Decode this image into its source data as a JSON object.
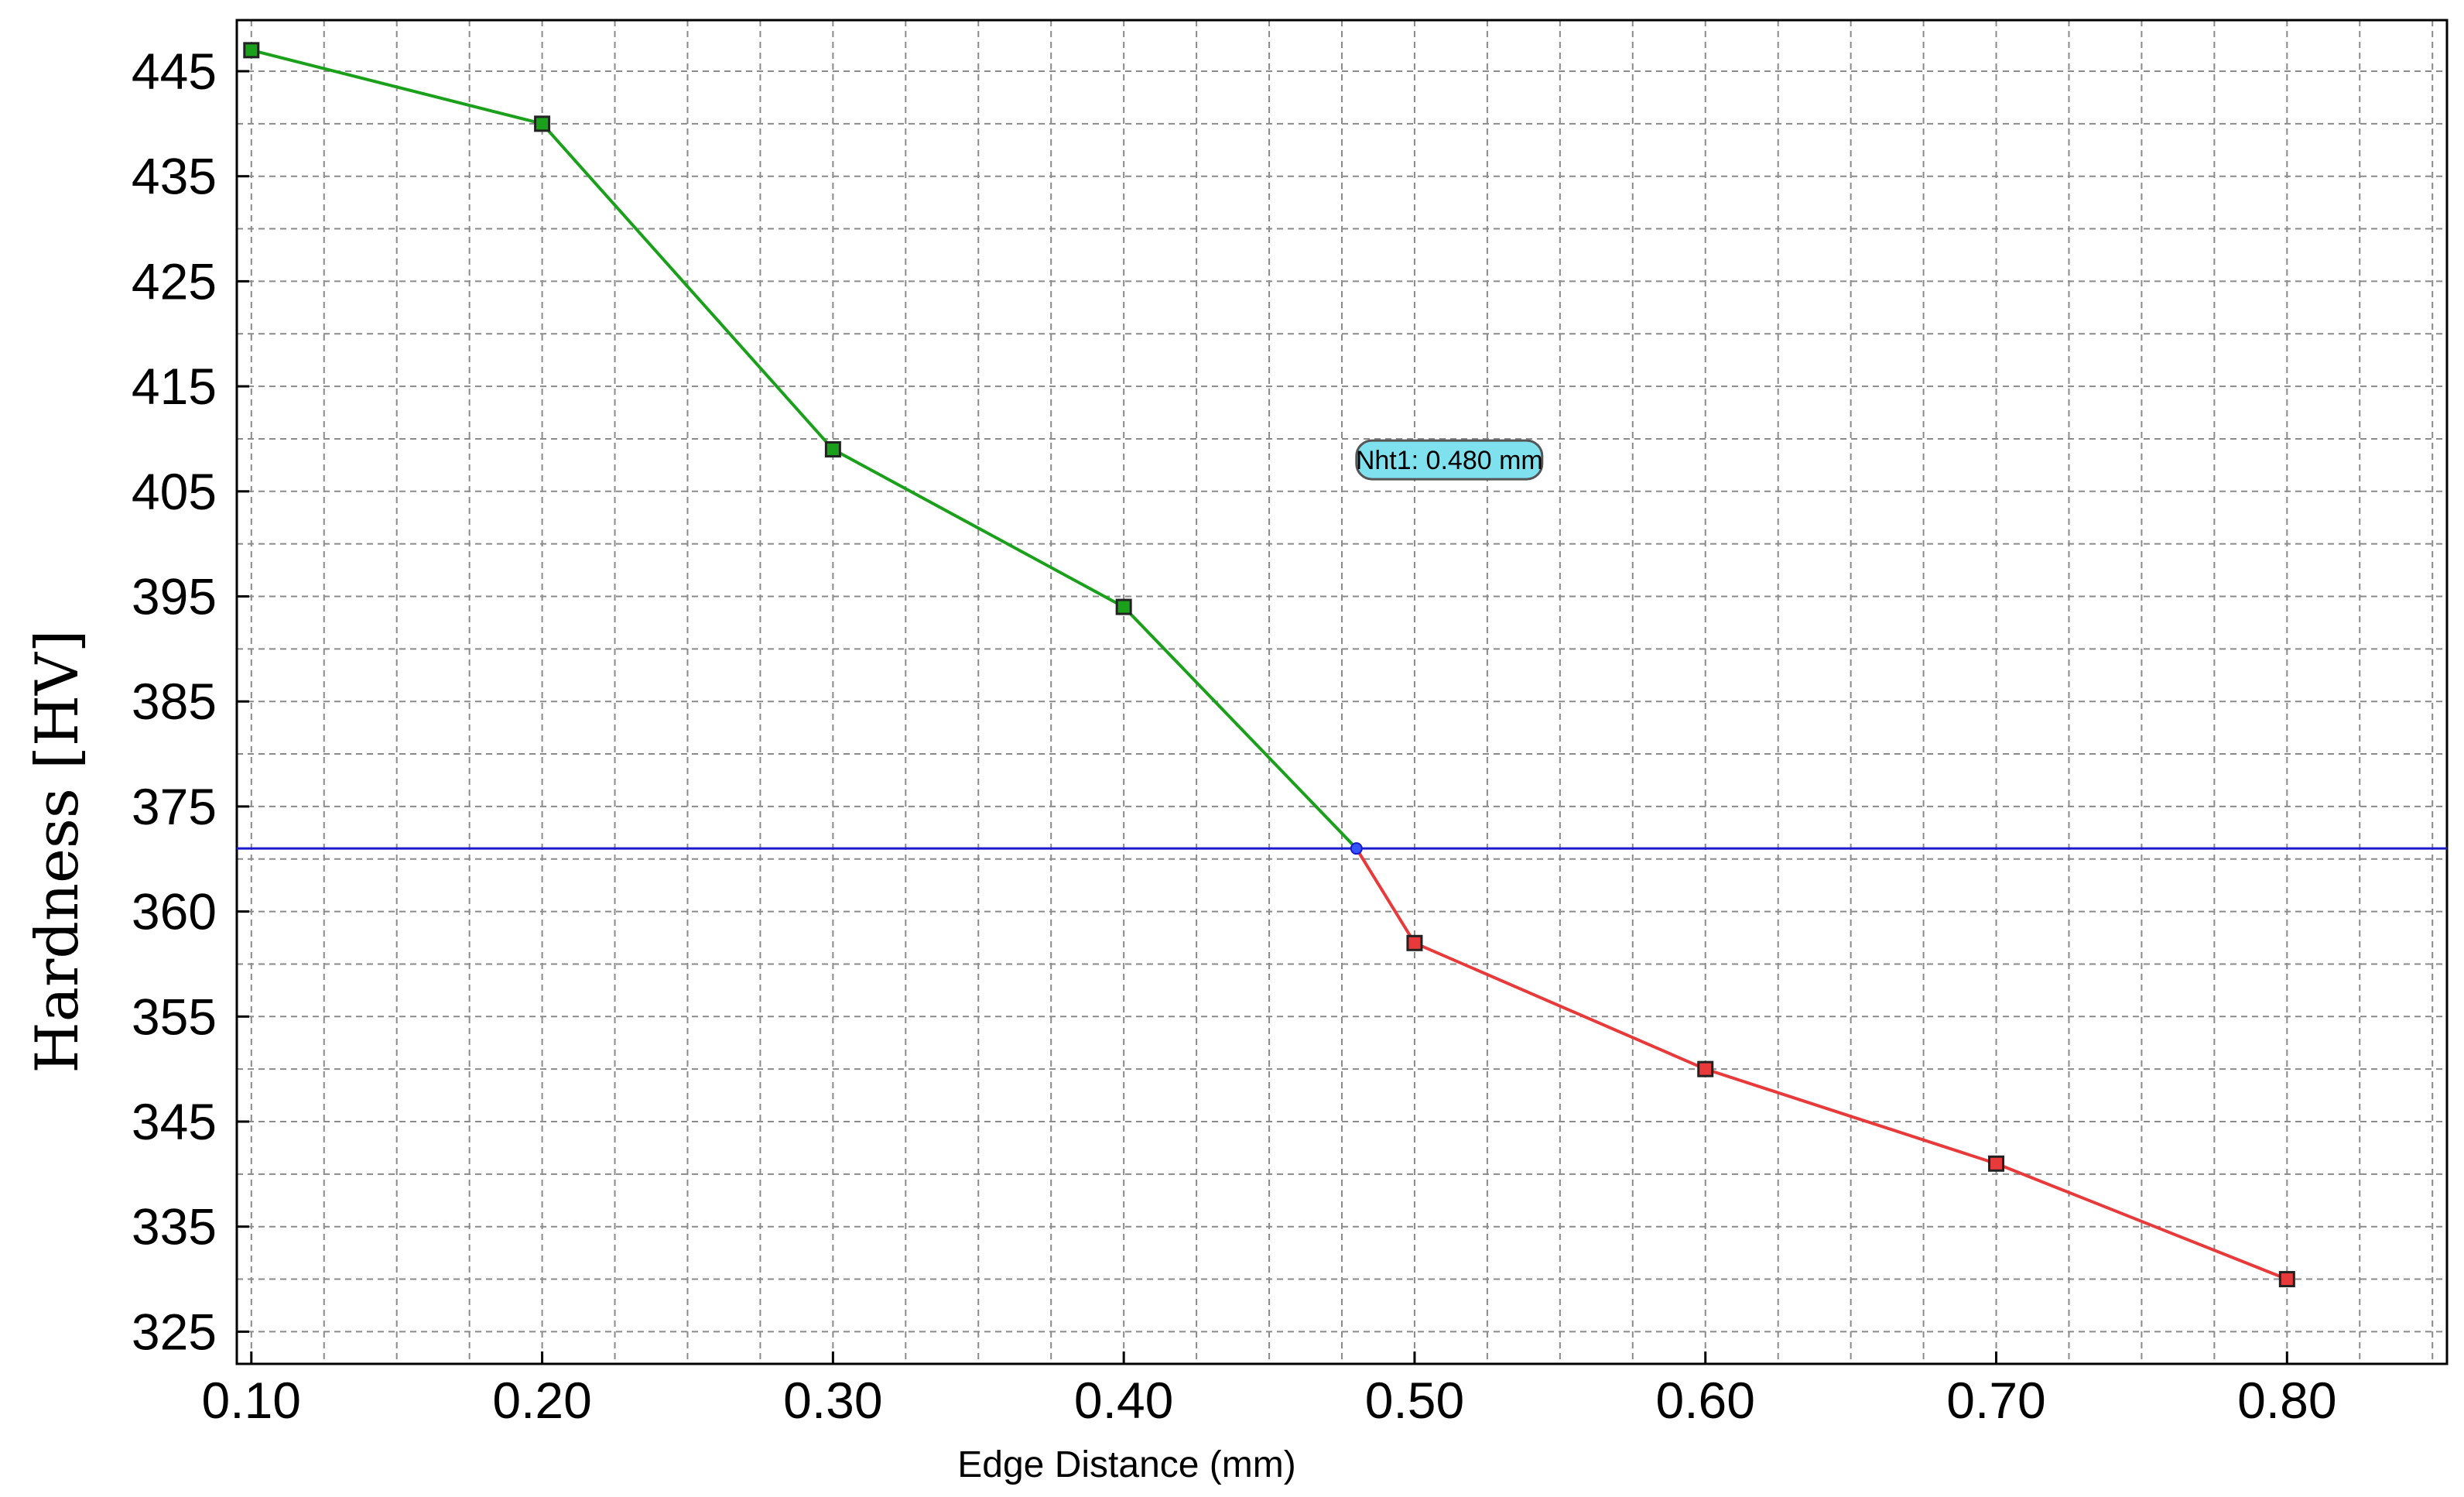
{
  "chart_data": {
    "type": "line",
    "title": "",
    "xlabel": "Edge Distance (mm)",
    "ylabel": "Hardness [HV]",
    "x_ticks": [
      "0.10",
      "0.20",
      "0.30",
      "0.40",
      "0.50",
      "0.60",
      "0.70",
      "0.80"
    ],
    "y_ticks": [
      "325",
      "335",
      "345",
      "355",
      "360",
      "375",
      "385",
      "395",
      "405",
      "415",
      "425",
      "435",
      "445"
    ],
    "xlim": [
      0.095,
      0.855
    ],
    "grid": true,
    "series": [
      {
        "color": "#1aa01a",
        "x": [
          0.1,
          0.2,
          0.3,
          0.4,
          0.48
        ],
        "y": [
          447,
          440,
          409,
          394,
          369
        ]
      },
      {
        "color": "#e83a3a",
        "x": [
          0.48,
          0.5,
          0.6,
          0.7,
          0.8
        ],
        "y": [
          369,
          358.5,
          350,
          341,
          330
        ]
      }
    ],
    "threshold": {
      "y": 369,
      "color": "#1a1acc"
    },
    "intersection": {
      "x": 0.48,
      "y": 369
    },
    "annotation": {
      "text": "Nht1: 0.480 mm",
      "x": 0.48,
      "y": 408
    }
  }
}
